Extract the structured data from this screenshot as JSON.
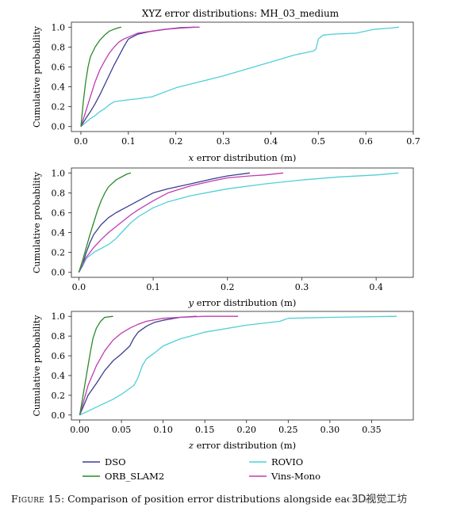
{
  "title": "XYZ error distributions: MH_03_medium",
  "ylabel": "Cumulative probability",
  "colors": {
    "DSO": "#3b3f8f",
    "ORB_SLAM2": "#2a8a2a",
    "ROVIO": "#4fd0d6",
    "Vins-Mono": "#c03cb0"
  },
  "legend": [
    {
      "name": "DSO"
    },
    {
      "name": "ROVIO"
    },
    {
      "name": "ORB_SLAM2"
    },
    {
      "name": "Vins-Mono"
    }
  ],
  "caption": {
    "label": "Figure 15",
    "text": ": Comparison of position error distributions alongside each axis o"
  },
  "watermark": "3D视觉工坊",
  "chart_data": [
    {
      "type": "line",
      "xlabel_var": "x",
      "xlabel_rest": " error distribution (m)",
      "xlim": [
        -0.02,
        0.7
      ],
      "ylim": [
        -0.05,
        1.05
      ],
      "xticks": [
        "0.0",
        "0.1",
        "0.2",
        "0.3",
        "0.4",
        "0.5",
        "0.6",
        "0.7"
      ],
      "yticks": [
        "0.0",
        "0.2",
        "0.4",
        "0.6",
        "0.8",
        "1.0"
      ],
      "grid": false,
      "series": [
        {
          "name": "DSO",
          "x": [
            0,
            0.01,
            0.02,
            0.03,
            0.04,
            0.05,
            0.06,
            0.07,
            0.08,
            0.09,
            0.1,
            0.12,
            0.15,
            0.18,
            0.21,
            0.24
          ],
          "y": [
            0,
            0.08,
            0.15,
            0.23,
            0.32,
            0.42,
            0.52,
            0.62,
            0.71,
            0.8,
            0.88,
            0.93,
            0.96,
            0.98,
            0.995,
            1.0
          ]
        },
        {
          "name": "ORB_SLAM2",
          "x": [
            0,
            0.005,
            0.01,
            0.015,
            0.02,
            0.03,
            0.04,
            0.05,
            0.06,
            0.07,
            0.08,
            0.085
          ],
          "y": [
            0,
            0.25,
            0.45,
            0.6,
            0.7,
            0.8,
            0.87,
            0.92,
            0.96,
            0.98,
            0.995,
            1.0
          ]
        },
        {
          "name": "ROVIO",
          "x": [
            0,
            0.01,
            0.02,
            0.03,
            0.04,
            0.05,
            0.06,
            0.07,
            0.1,
            0.12,
            0.15,
            0.2,
            0.25,
            0.3,
            0.35,
            0.4,
            0.45,
            0.49,
            0.495,
            0.5,
            0.51,
            0.53,
            0.58,
            0.6,
            0.62,
            0.65,
            0.67
          ],
          "y": [
            0,
            0.04,
            0.08,
            0.11,
            0.15,
            0.18,
            0.22,
            0.25,
            0.27,
            0.28,
            0.3,
            0.39,
            0.45,
            0.51,
            0.58,
            0.65,
            0.72,
            0.76,
            0.78,
            0.88,
            0.92,
            0.93,
            0.94,
            0.96,
            0.98,
            0.99,
            1.0
          ]
        },
        {
          "name": "Vins-Mono",
          "x": [
            0,
            0.01,
            0.02,
            0.03,
            0.04,
            0.05,
            0.06,
            0.07,
            0.08,
            0.09,
            0.1,
            0.12,
            0.15,
            0.18,
            0.21,
            0.24,
            0.25
          ],
          "y": [
            0,
            0.15,
            0.3,
            0.45,
            0.57,
            0.66,
            0.74,
            0.8,
            0.85,
            0.88,
            0.9,
            0.94,
            0.96,
            0.98,
            0.99,
            1.0,
            1.0
          ]
        }
      ]
    },
    {
      "type": "line",
      "xlabel_var": "y",
      "xlabel_rest": " error distribution (m)",
      "xlim": [
        -0.01,
        0.45
      ],
      "ylim": [
        -0.05,
        1.05
      ],
      "xticks": [
        "0.0",
        "0.1",
        "0.2",
        "0.3",
        "0.4"
      ],
      "yticks": [
        "0.0",
        "0.2",
        "0.4",
        "0.6",
        "0.8",
        "1.0"
      ],
      "grid": false,
      "series": [
        {
          "name": "DSO",
          "x": [
            0,
            0.005,
            0.01,
            0.015,
            0.02,
            0.03,
            0.04,
            0.05,
            0.06,
            0.07,
            0.08,
            0.1,
            0.12,
            0.15,
            0.18,
            0.2,
            0.23
          ],
          "y": [
            0,
            0.08,
            0.2,
            0.3,
            0.38,
            0.48,
            0.55,
            0.6,
            0.64,
            0.68,
            0.72,
            0.8,
            0.84,
            0.89,
            0.94,
            0.97,
            1.0
          ]
        },
        {
          "name": "ORB_SLAM2",
          "x": [
            0,
            0.005,
            0.01,
            0.015,
            0.02,
            0.025,
            0.03,
            0.035,
            0.04,
            0.05,
            0.06,
            0.065,
            0.07
          ],
          "y": [
            0,
            0.12,
            0.25,
            0.38,
            0.5,
            0.62,
            0.72,
            0.8,
            0.86,
            0.93,
            0.97,
            0.99,
            1.0
          ]
        },
        {
          "name": "ROVIO",
          "x": [
            0,
            0.005,
            0.01,
            0.02,
            0.03,
            0.04,
            0.05,
            0.06,
            0.07,
            0.08,
            0.1,
            0.12,
            0.15,
            0.2,
            0.25,
            0.3,
            0.35,
            0.4,
            0.43
          ],
          "y": [
            0,
            0.06,
            0.14,
            0.2,
            0.24,
            0.28,
            0.34,
            0.42,
            0.5,
            0.56,
            0.65,
            0.71,
            0.77,
            0.84,
            0.89,
            0.93,
            0.96,
            0.98,
            1.0
          ]
        },
        {
          "name": "Vins-Mono",
          "x": [
            0,
            0.005,
            0.01,
            0.02,
            0.03,
            0.04,
            0.05,
            0.06,
            0.07,
            0.08,
            0.1,
            0.12,
            0.15,
            0.18,
            0.2,
            0.23,
            0.25,
            0.275
          ],
          "y": [
            0,
            0.08,
            0.15,
            0.25,
            0.33,
            0.4,
            0.46,
            0.52,
            0.58,
            0.63,
            0.72,
            0.8,
            0.87,
            0.92,
            0.95,
            0.97,
            0.98,
            1.0
          ]
        }
      ]
    },
    {
      "type": "line",
      "xlabel_var": "z",
      "xlabel_rest": " error distribution (m)",
      "xlim": [
        -0.01,
        0.4
      ],
      "ylim": [
        -0.05,
        1.05
      ],
      "xticks": [
        "0.00",
        "0.05",
        "0.10",
        "0.15",
        "0.20",
        "0.25",
        "0.30",
        "0.35"
      ],
      "yticks": [
        "0.0",
        "0.2",
        "0.4",
        "0.6",
        "0.8",
        "1.0"
      ],
      "grid": false,
      "series": [
        {
          "name": "DSO",
          "x": [
            0,
            0.005,
            0.01,
            0.02,
            0.03,
            0.04,
            0.05,
            0.06,
            0.065,
            0.07,
            0.08,
            0.09,
            0.1,
            0.12,
            0.14
          ],
          "y": [
            0,
            0.1,
            0.2,
            0.32,
            0.45,
            0.55,
            0.62,
            0.7,
            0.78,
            0.84,
            0.9,
            0.94,
            0.96,
            0.99,
            1.0
          ]
        },
        {
          "name": "ORB_SLAM2",
          "x": [
            0,
            0.003,
            0.006,
            0.01,
            0.013,
            0.016,
            0.02,
            0.025,
            0.03,
            0.04
          ],
          "y": [
            0,
            0.15,
            0.3,
            0.5,
            0.65,
            0.78,
            0.88,
            0.95,
            0.99,
            1.0
          ]
        },
        {
          "name": "ROVIO",
          "x": [
            0,
            0.01,
            0.02,
            0.03,
            0.04,
            0.05,
            0.06,
            0.065,
            0.07,
            0.075,
            0.08,
            0.09,
            0.1,
            0.12,
            0.15,
            0.2,
            0.24,
            0.25,
            0.3,
            0.38
          ],
          "y": [
            0,
            0.04,
            0.08,
            0.12,
            0.16,
            0.21,
            0.27,
            0.3,
            0.38,
            0.5,
            0.57,
            0.63,
            0.7,
            0.77,
            0.84,
            0.91,
            0.95,
            0.98,
            0.99,
            1.0
          ]
        },
        {
          "name": "Vins-Mono",
          "x": [
            0,
            0.005,
            0.01,
            0.02,
            0.03,
            0.04,
            0.05,
            0.06,
            0.07,
            0.08,
            0.1,
            0.12,
            0.15,
            0.19
          ],
          "y": [
            0,
            0.15,
            0.3,
            0.5,
            0.65,
            0.76,
            0.83,
            0.88,
            0.92,
            0.95,
            0.98,
            0.99,
            1.0,
            1.0
          ]
        }
      ]
    }
  ]
}
